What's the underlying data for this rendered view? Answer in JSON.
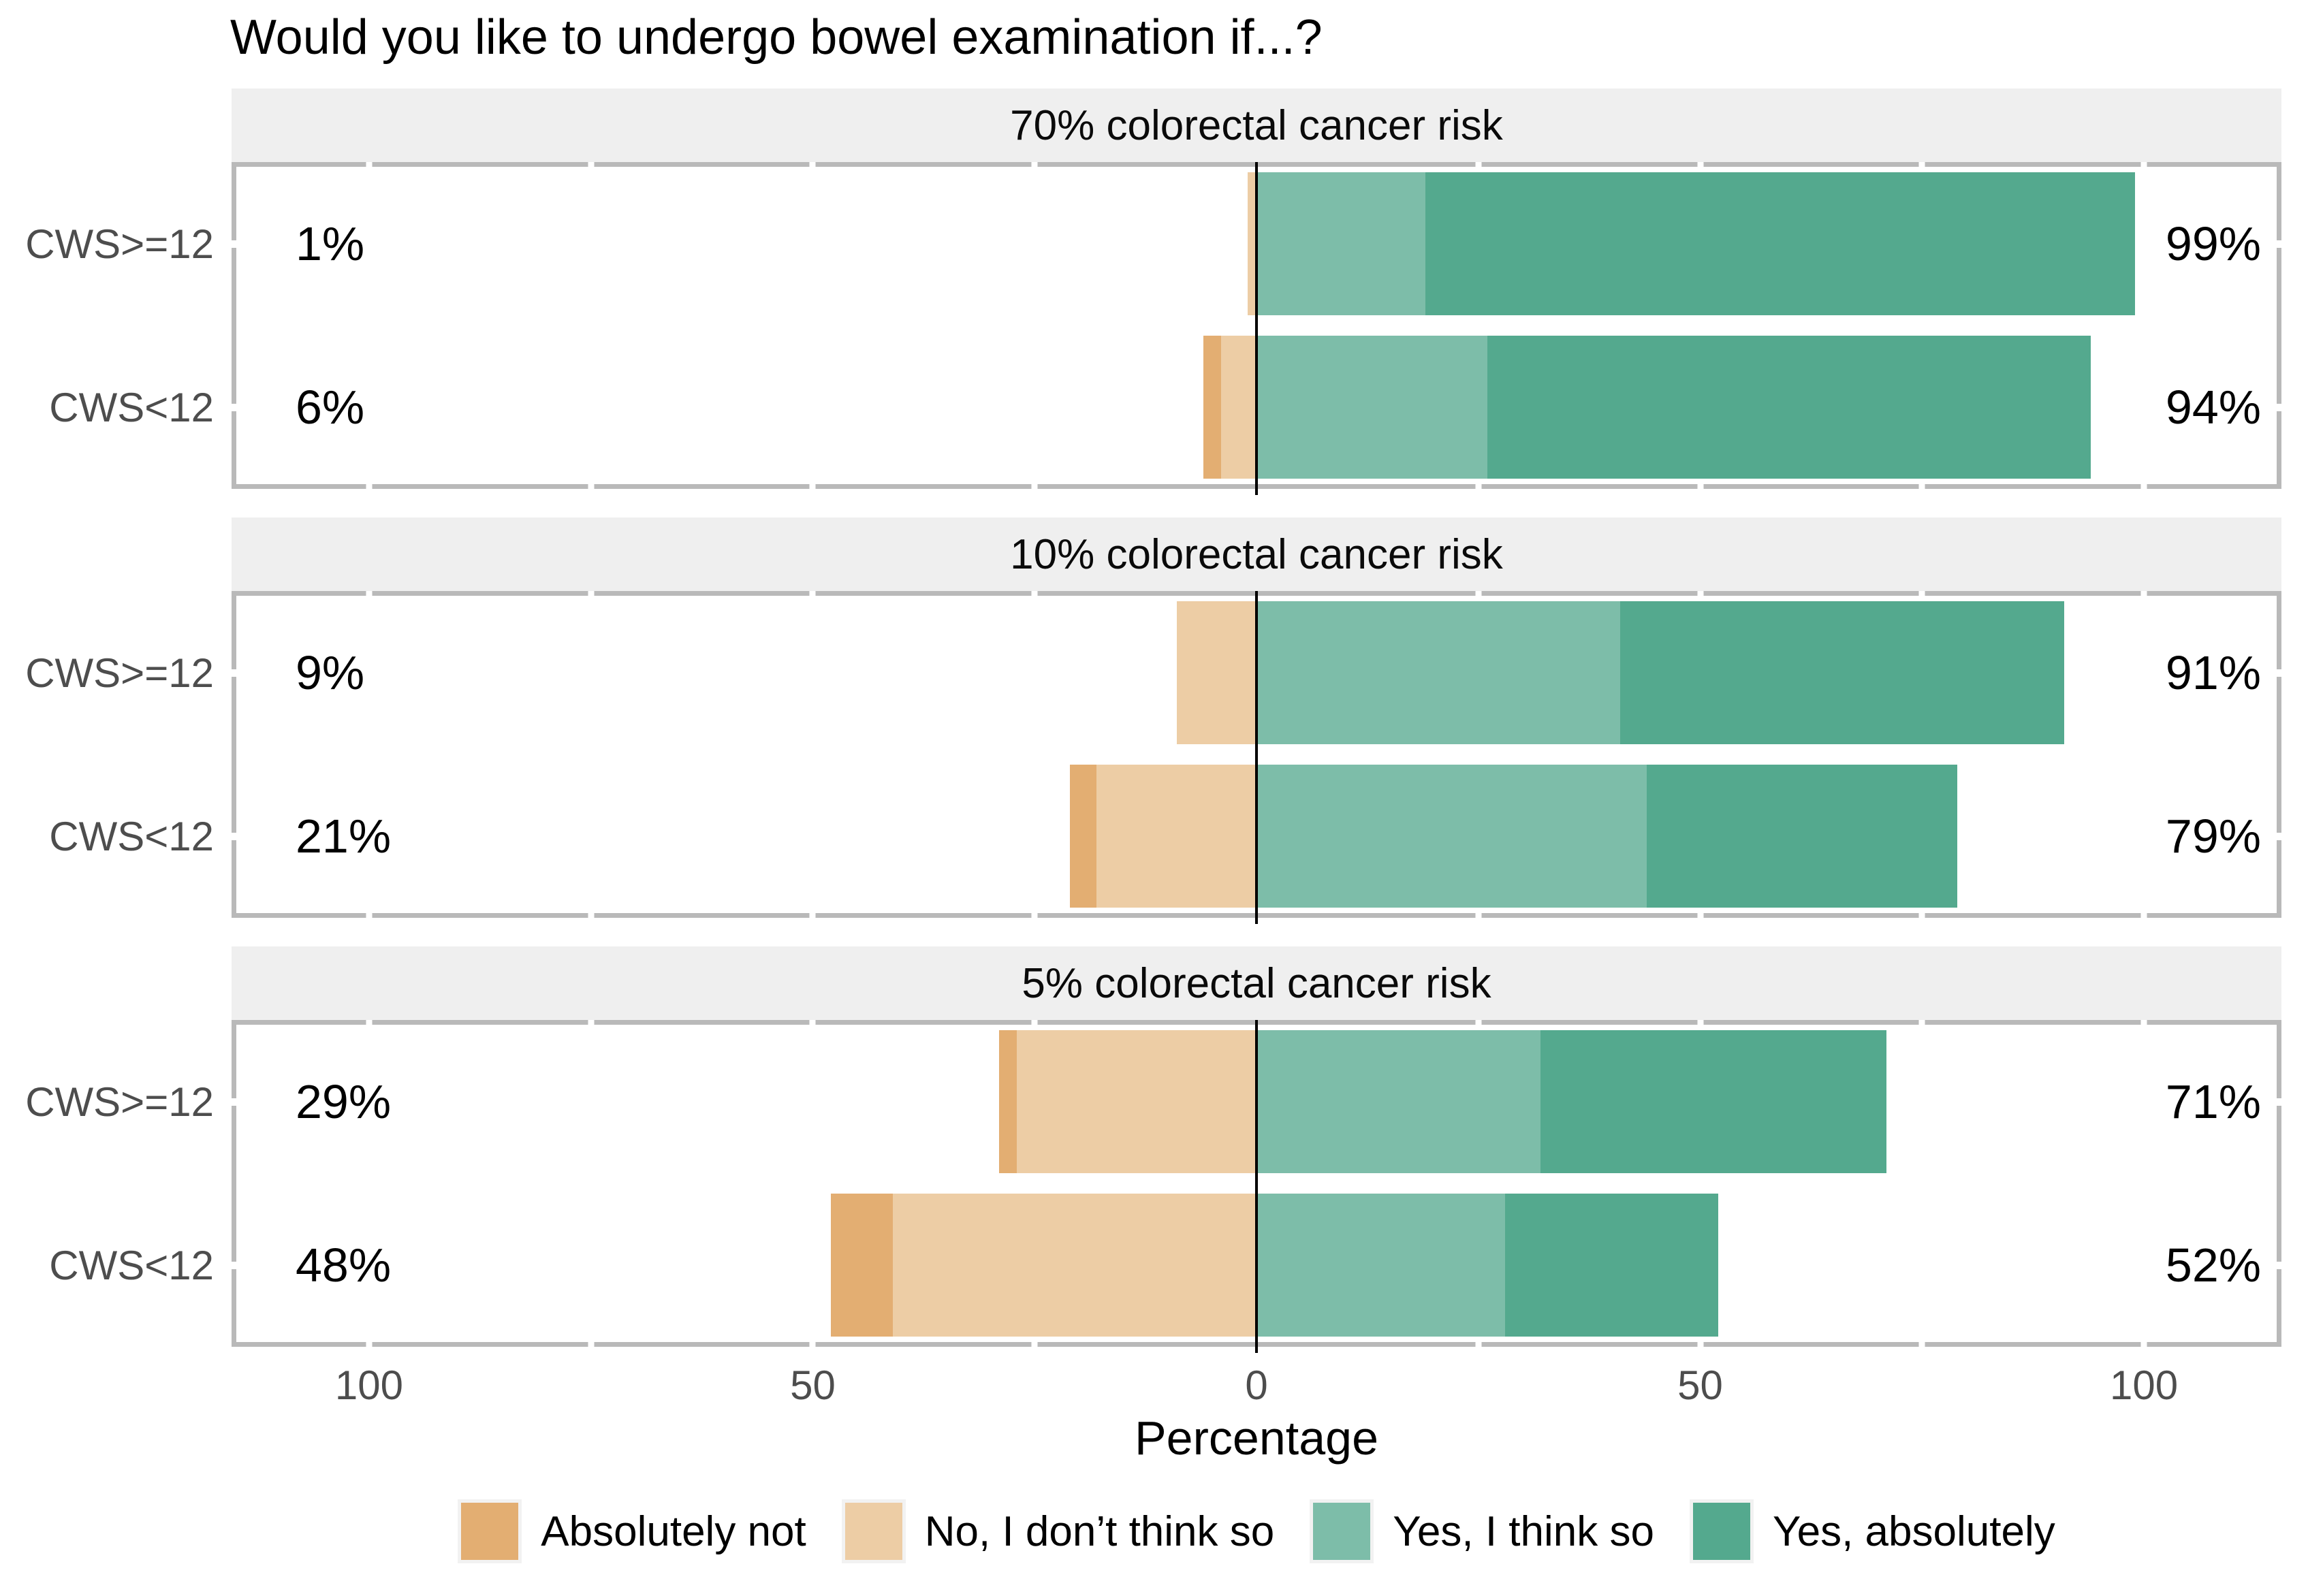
{
  "chart_data": {
    "type": "diverging_stacked_bar",
    "title": "Would you like to undergo bowel examination if...?",
    "xlabel": "Percentage",
    "x_domain": [
      -115.5,
      115.5
    ],
    "x_tick_labels": [
      {
        "value": -100,
        "label": "100"
      },
      {
        "value": -50,
        "label": "50"
      },
      {
        "value": 0,
        "label": "0"
      },
      {
        "value": 50,
        "label": "50"
      },
      {
        "value": 100,
        "label": "100"
      }
    ],
    "x_minor_ticks": [
      -100,
      -75,
      -50,
      -25,
      25,
      50,
      75,
      100
    ],
    "legend": [
      "Absolutely not",
      "No, I don’t think so",
      "Yes, I think so",
      "Yes, absolutely"
    ],
    "series_keys": [
      "absolutely-not",
      "no-i-dont-think-so",
      "yes-i-think-so",
      "yes-absolutely"
    ],
    "series_colors": [
      "#e3ae72",
      "#edcda5",
      "#7dbda9",
      "#54a98e"
    ],
    "facets": [
      {
        "title": "70% colorectal cancer risk",
        "rows": [
          {
            "group": "CWS>=12",
            "values": [
              0,
              1,
              19,
              80
            ],
            "neg_label": "1%",
            "pos_label": "99%"
          },
          {
            "group": "CWS<12",
            "values": [
              2,
              4,
              26,
              68
            ],
            "neg_label": "6%",
            "pos_label": "94%"
          }
        ]
      },
      {
        "title": "10% colorectal cancer risk",
        "rows": [
          {
            "group": "CWS>=12",
            "values": [
              0,
              9,
              41,
              50
            ],
            "neg_label": "9%",
            "pos_label": "91%"
          },
          {
            "group": "CWS<12",
            "values": [
              3,
              18,
              44,
              35
            ],
            "neg_label": "21%",
            "pos_label": "79%"
          }
        ]
      },
      {
        "title": "5% colorectal cancer risk",
        "rows": [
          {
            "group": "CWS>=12",
            "values": [
              2,
              27,
              32,
              39
            ],
            "neg_label": "29%",
            "pos_label": "71%"
          },
          {
            "group": "CWS<12",
            "values": [
              7,
              41,
              28,
              24
            ],
            "neg_label": "48%",
            "pos_label": "52%"
          }
        ]
      }
    ]
  },
  "colors": {
    "background": "#ffffff",
    "strip_bg": "#efefef",
    "panel_border": "#b9b9b9",
    "notch": "#ffffff",
    "zero_line": "#000000",
    "axis_text": "#4d4d4d",
    "text": "#000000",
    "legend_key_bg": "#f2f2f2"
  }
}
